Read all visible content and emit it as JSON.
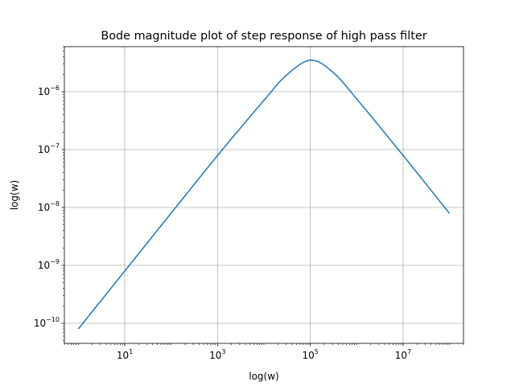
{
  "chart_data": {
    "type": "line",
    "title": "Bode magnitude plot of step response of high pass filter",
    "xlabel": "log(w)",
    "ylabel": "log(w)",
    "x_scale": "log",
    "y_scale": "log",
    "xlim": [
      0.5,
      200000000
    ],
    "ylim": [
      4.5e-11,
      6e-06
    ],
    "grid": true,
    "x_ticks": [
      {
        "value": 10,
        "base": "10",
        "exp": "1"
      },
      {
        "value": 1000,
        "base": "10",
        "exp": "3"
      },
      {
        "value": 100000,
        "base": "10",
        "exp": "5"
      },
      {
        "value": 10000000,
        "base": "10",
        "exp": "7"
      }
    ],
    "y_ticks": [
      {
        "value": 1e-10,
        "base": "10",
        "exp": "−10"
      },
      {
        "value": 1e-09,
        "base": "10",
        "exp": "−9"
      },
      {
        "value": 1e-08,
        "base": "10",
        "exp": "−8"
      },
      {
        "value": 1e-07,
        "base": "10",
        "exp": "−7"
      },
      {
        "value": 1e-06,
        "base": "10",
        "exp": "−6"
      }
    ],
    "series": [
      {
        "color": "#1f77b4",
        "x": [
          1,
          10,
          100,
          1000,
          10000,
          30000,
          100000,
          300000,
          1000000,
          10000000,
          100000000
        ],
        "y": [
          8e-11,
          8e-10,
          8e-09,
          7.9e-08,
          7.1e-07,
          1.9e-06,
          3.5e-06,
          2.2e-06,
          7.5e-07,
          7.9e-08,
          7.9e-09
        ]
      }
    ]
  }
}
